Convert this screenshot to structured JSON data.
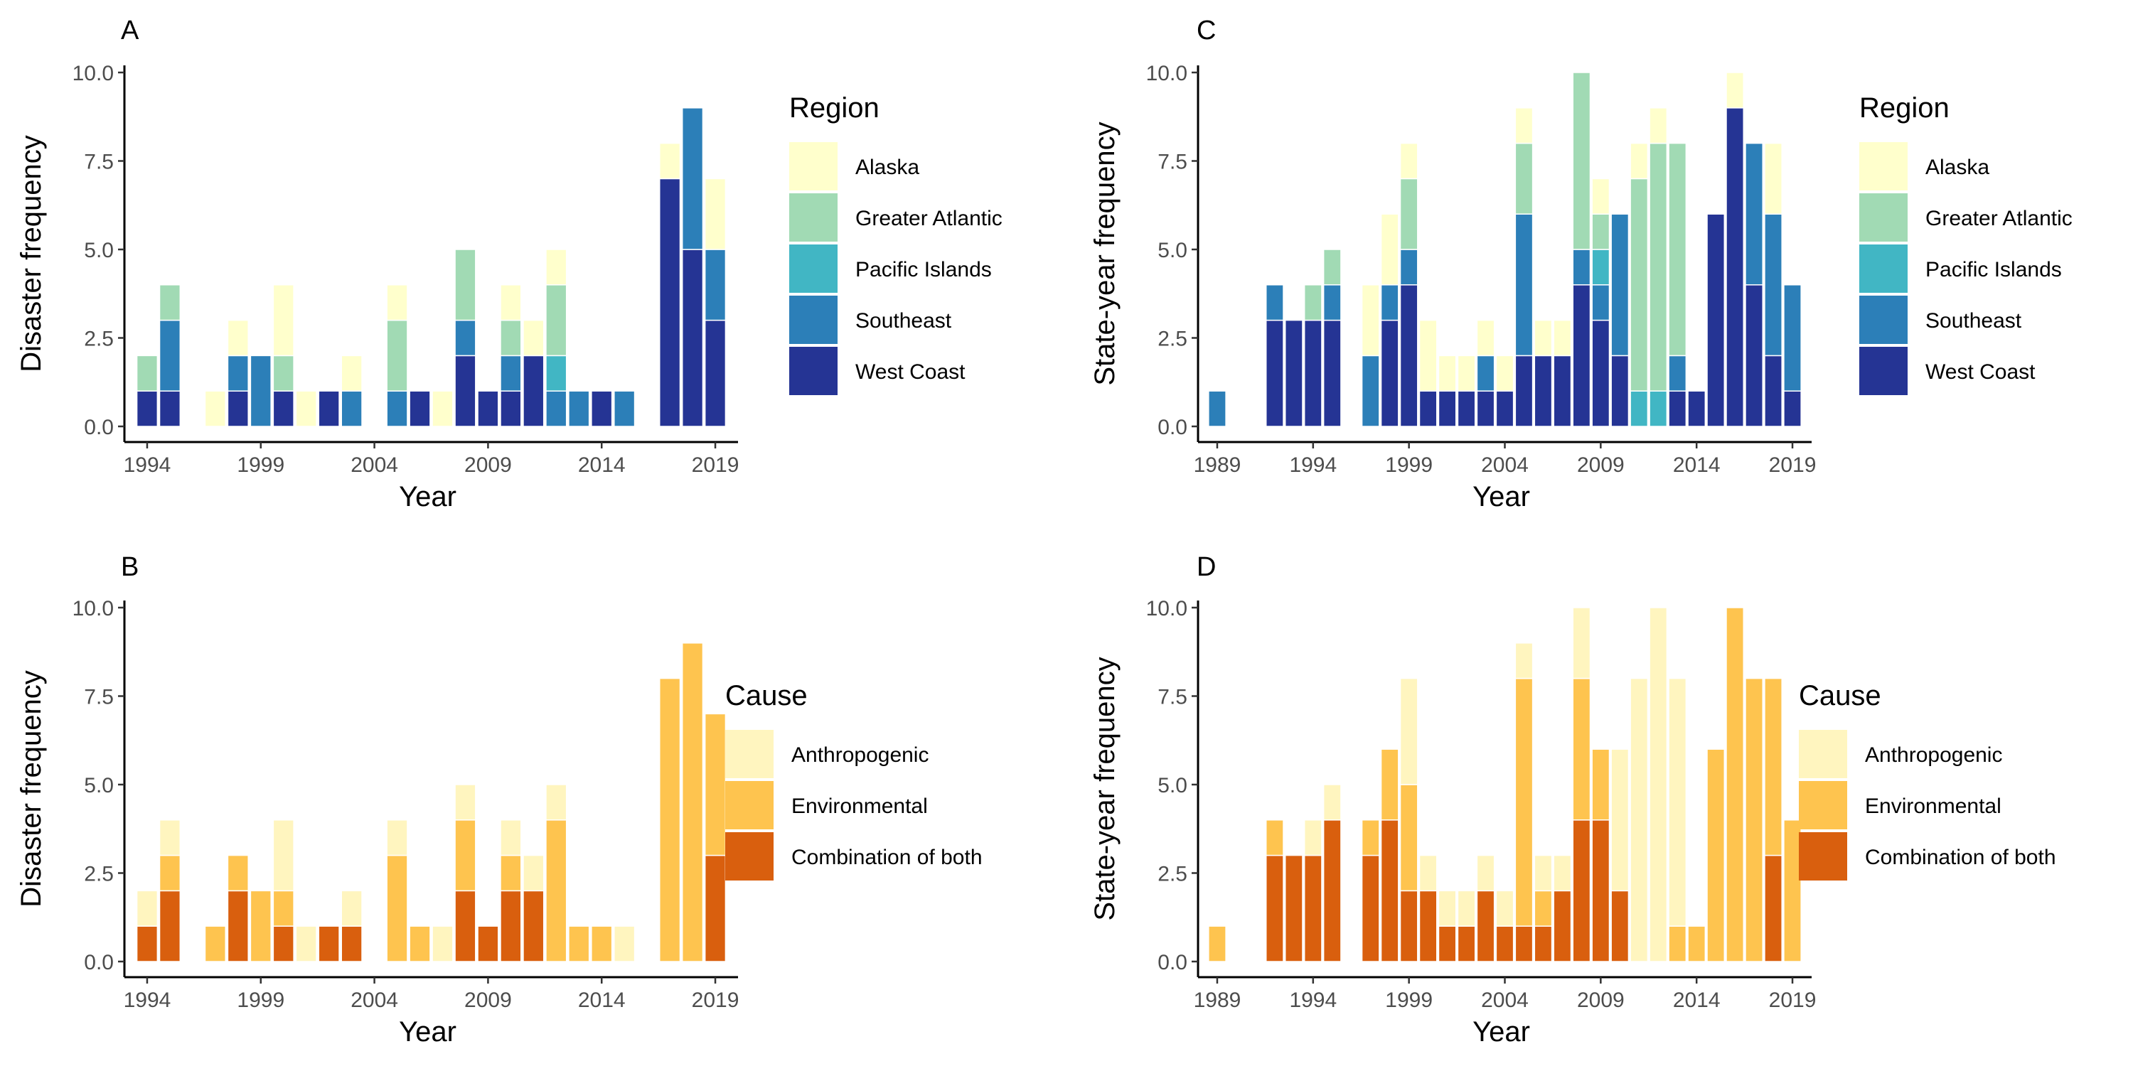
{
  "palettes": {
    "region": {
      "Alaska": "#ffffcc",
      "Greater Atlantic": "#a1dab4",
      "Pacific Islands": "#41b6c4",
      "Southeast": "#2c7fb8",
      "West Coast": "#253494"
    },
    "cause": {
      "Anthropogenic": "#fff5bf",
      "Environmental": "#fec44f",
      "Combination of both": "#d95f0e"
    }
  },
  "chart_data": [
    {
      "panel": "A",
      "type": "bar",
      "stacked": true,
      "xlabel": "Year",
      "ylabel": "Disaster frequency",
      "xlim": [
        1993,
        2020
      ],
      "ylim": [
        0,
        10
      ],
      "xticks": [
        1994,
        1999,
        2004,
        2009,
        2014,
        2019
      ],
      "yticks": [
        "0.0",
        "2.5",
        "5.0",
        "7.5",
        "10.0"
      ],
      "legend_title": "Region",
      "legend": [
        "Alaska",
        "Greater Atlantic",
        "Pacific Islands",
        "Southeast",
        "West Coast"
      ],
      "legend_position": "right",
      "grid": false,
      "x": [
        1994,
        1995,
        1997,
        1998,
        1999,
        2000,
        2001,
        2002,
        2003,
        2005,
        2006,
        2007,
        2008,
        2009,
        2010,
        2011,
        2012,
        2013,
        2014,
        2015,
        2017,
        2018,
        2019
      ],
      "series": [
        {
          "name": "West Coast",
          "values": [
            1,
            1,
            0,
            1,
            0,
            1,
            0,
            1,
            0,
            0,
            1,
            0,
            2,
            1,
            1,
            2,
            0,
            0,
            1,
            0,
            7,
            5,
            3
          ]
        },
        {
          "name": "Southeast",
          "values": [
            0,
            2,
            0,
            1,
            2,
            0,
            0,
            0,
            1,
            1,
            0,
            0,
            1,
            0,
            1,
            0,
            1,
            1,
            0,
            1,
            0,
            4,
            2
          ]
        },
        {
          "name": "Pacific Islands",
          "values": [
            0,
            0,
            0,
            0,
            0,
            0,
            0,
            0,
            0,
            0,
            0,
            0,
            0,
            0,
            0,
            0,
            1,
            0,
            0,
            0,
            0,
            0,
            0
          ]
        },
        {
          "name": "Greater Atlantic",
          "values": [
            1,
            1,
            0,
            0,
            0,
            1,
            0,
            0,
            0,
            2,
            0,
            0,
            2,
            0,
            1,
            0,
            2,
            0,
            0,
            0,
            0,
            0,
            0
          ]
        },
        {
          "name": "Alaska",
          "values": [
            0,
            0,
            1,
            1,
            0,
            2,
            1,
            0,
            1,
            1,
            0,
            1,
            0,
            0,
            1,
            1,
            1,
            0,
            0,
            0,
            1,
            0,
            2
          ]
        }
      ]
    },
    {
      "panel": "C",
      "type": "bar",
      "stacked": true,
      "xlabel": "Year",
      "ylabel": "State-year frequency",
      "xlim": [
        1988,
        2020
      ],
      "ylim": [
        0,
        10
      ],
      "xticks": [
        1989,
        1994,
        1999,
        2004,
        2009,
        2014,
        2019
      ],
      "yticks": [
        "0.0",
        "2.5",
        "5.0",
        "7.5",
        "10.0"
      ],
      "legend_title": "Region",
      "legend": [
        "Alaska",
        "Greater Atlantic",
        "Pacific Islands",
        "Southeast",
        "West Coast"
      ],
      "legend_position": "right",
      "grid": false,
      "x": [
        1989,
        1992,
        1993,
        1994,
        1995,
        1997,
        1998,
        1999,
        2000,
        2001,
        2002,
        2003,
        2004,
        2005,
        2006,
        2007,
        2008,
        2009,
        2010,
        2011,
        2012,
        2013,
        2014,
        2015,
        2016,
        2017,
        2018,
        2019
      ],
      "series": [
        {
          "name": "West Coast",
          "values": [
            0,
            3,
            3,
            3,
            3,
            0,
            3,
            4,
            1,
            1,
            1,
            1,
            1,
            2,
            2,
            2,
            4,
            3,
            2,
            0,
            0,
            1,
            1,
            6,
            9,
            4,
            2,
            1
          ]
        },
        {
          "name": "Southeast",
          "values": [
            1,
            1,
            0,
            0,
            1,
            2,
            1,
            1,
            0,
            0,
            0,
            1,
            0,
            4,
            0,
            0,
            1,
            1,
            4,
            0,
            0,
            1,
            0,
            0,
            0,
            4,
            4,
            3
          ]
        },
        {
          "name": "Pacific Islands",
          "values": [
            0,
            0,
            0,
            0,
            0,
            0,
            0,
            0,
            0,
            0,
            0,
            0,
            0,
            0,
            0,
            0,
            0,
            1,
            0,
            1,
            1,
            0,
            0,
            0,
            0,
            0,
            0,
            0
          ]
        },
        {
          "name": "Greater Atlantic",
          "values": [
            0,
            0,
            0,
            1,
            1,
            0,
            0,
            2,
            0,
            0,
            0,
            0,
            0,
            2,
            0,
            0,
            5,
            1,
            0,
            6,
            7,
            6,
            0,
            0,
            0,
            0,
            0,
            0
          ]
        },
        {
          "name": "Alaska",
          "values": [
            0,
            0,
            0,
            0,
            0,
            2,
            2,
            1,
            2,
            1,
            1,
            1,
            1,
            1,
            1,
            1,
            0,
            1,
            0,
            1,
            1,
            0,
            0,
            0,
            1,
            0,
            2,
            0
          ]
        }
      ]
    },
    {
      "panel": "B",
      "type": "bar",
      "stacked": true,
      "xlabel": "Year",
      "ylabel": "Disaster frequency",
      "xlim": [
        1993,
        2020
      ],
      "ylim": [
        0,
        10
      ],
      "xticks": [
        1994,
        1999,
        2004,
        2009,
        2014,
        2019
      ],
      "yticks": [
        "0.0",
        "2.5",
        "5.0",
        "7.5",
        "10.0"
      ],
      "legend_title": "Cause",
      "legend": [
        "Anthropogenic",
        "Environmental",
        "Combination of both"
      ],
      "legend_position": "right",
      "grid": false,
      "x": [
        1994,
        1995,
        1997,
        1998,
        1999,
        2000,
        2001,
        2002,
        2003,
        2005,
        2006,
        2007,
        2008,
        2009,
        2010,
        2011,
        2012,
        2013,
        2014,
        2015,
        2017,
        2018,
        2019
      ],
      "series": [
        {
          "name": "Combination of both",
          "values": [
            1,
            2,
            0,
            2,
            0,
            1,
            0,
            1,
            1,
            0,
            0,
            0,
            2,
            1,
            2,
            2,
            0,
            0,
            0,
            0,
            0,
            0,
            3
          ]
        },
        {
          "name": "Environmental",
          "values": [
            0,
            1,
            1,
            1,
            2,
            1,
            0,
            0,
            0,
            3,
            1,
            0,
            2,
            0,
            1,
            0,
            4,
            1,
            1,
            0,
            8,
            9,
            4
          ]
        },
        {
          "name": "Anthropogenic",
          "values": [
            1,
            1,
            0,
            0,
            0,
            2,
            1,
            0,
            1,
            1,
            0,
            1,
            1,
            0,
            1,
            1,
            1,
            0,
            0,
            1,
            0,
            0,
            0
          ]
        }
      ]
    },
    {
      "panel": "D",
      "type": "bar",
      "stacked": true,
      "xlabel": "Year",
      "ylabel": "State-year frequency",
      "xlim": [
        1988,
        2020
      ],
      "ylim": [
        0,
        10
      ],
      "xticks": [
        1989,
        1994,
        1999,
        2004,
        2009,
        2014,
        2019
      ],
      "yticks": [
        "0.0",
        "2.5",
        "5.0",
        "7.5",
        "10.0"
      ],
      "legend_title": "Cause",
      "legend": [
        "Anthropogenic",
        "Environmental",
        "Combination of both"
      ],
      "legend_position": "right",
      "grid": false,
      "x": [
        1989,
        1992,
        1993,
        1994,
        1995,
        1997,
        1998,
        1999,
        2000,
        2001,
        2002,
        2003,
        2004,
        2005,
        2006,
        2007,
        2008,
        2009,
        2010,
        2011,
        2012,
        2013,
        2014,
        2015,
        2016,
        2017,
        2018,
        2019
      ],
      "series": [
        {
          "name": "Combination of both",
          "values": [
            0,
            3,
            3,
            3,
            4,
            3,
            4,
            2,
            2,
            1,
            1,
            2,
            1,
            1,
            1,
            2,
            4,
            4,
            2,
            0,
            0,
            0,
            0,
            0,
            0,
            0,
            3,
            0
          ]
        },
        {
          "name": "Environmental",
          "values": [
            1,
            1,
            0,
            0,
            0,
            1,
            2,
            3,
            0,
            0,
            0,
            0,
            0,
            7,
            1,
            0,
            4,
            2,
            0,
            0,
            0,
            1,
            1,
            6,
            10,
            8,
            5,
            4
          ]
        },
        {
          "name": "Anthropogenic",
          "values": [
            0,
            0,
            0,
            1,
            1,
            0,
            0,
            3,
            1,
            1,
            1,
            1,
            1,
            1,
            1,
            1,
            2,
            0,
            4,
            8,
            10,
            7,
            0,
            0,
            0,
            0,
            0,
            0
          ]
        }
      ]
    }
  ]
}
